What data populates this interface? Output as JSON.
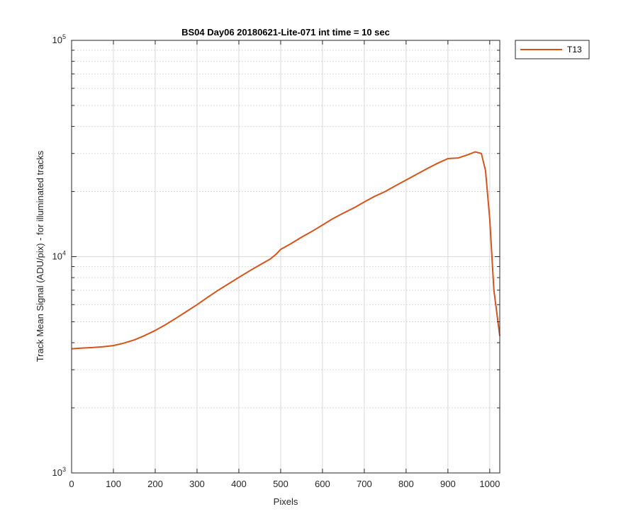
{
  "chart_data": {
    "type": "line",
    "title": "BS04 Day06 20180621-Lite-071 int time = 10 sec",
    "xlabel": "Pixels",
    "ylabel": "Track Mean Signal (ADU/pix) - for illuminated tracks",
    "xlim": [
      0,
      1024
    ],
    "ylim": [
      1000,
      100000
    ],
    "yscale": "log",
    "grid": true,
    "minor_grid": true,
    "x_ticks": [
      "0",
      "100",
      "200",
      "300",
      "400",
      "500",
      "600",
      "700",
      "800",
      "900",
      "1000"
    ],
    "y_ticks": [
      {
        "base": "10",
        "exp": "3"
      },
      {
        "base": "10",
        "exp": "4"
      },
      {
        "base": "10",
        "exp": "5"
      }
    ],
    "legend_position": "outside-top-right",
    "series": [
      {
        "name": "T13",
        "color": "#D95319",
        "x": [
          0,
          25,
          50,
          75,
          100,
          125,
          150,
          175,
          200,
          225,
          250,
          275,
          300,
          325,
          350,
          375,
          400,
          425,
          450,
          475,
          490,
          500,
          525,
          550,
          575,
          600,
          625,
          650,
          675,
          700,
          725,
          750,
          775,
          800,
          825,
          850,
          875,
          900,
          925,
          950,
          965,
          980,
          990,
          1000,
          1010,
          1024
        ],
        "y": [
          3750,
          3780,
          3800,
          3830,
          3880,
          3980,
          4120,
          4320,
          4560,
          4850,
          5200,
          5580,
          6000,
          6480,
          6980,
          7480,
          8020,
          8580,
          9150,
          9750,
          10300,
          10800,
          11500,
          12300,
          13100,
          14000,
          15000,
          15900,
          16800,
          17900,
          19000,
          20000,
          21300,
          22600,
          24000,
          25500,
          27000,
          28400,
          28600,
          29700,
          30500,
          30000,
          25000,
          15000,
          7000,
          4300
        ]
      }
    ]
  }
}
